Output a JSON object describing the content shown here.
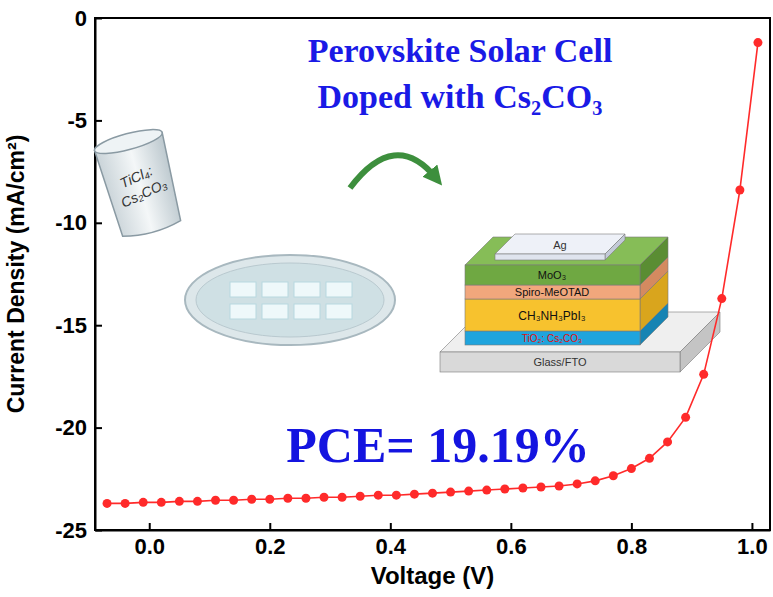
{
  "chart_data": {
    "type": "line",
    "x_label": "Voltage (V)",
    "y_label": "Current Density (mA/cm²)",
    "x": [
      -0.07,
      -0.04,
      -0.01,
      0.02,
      0.05,
      0.08,
      0.11,
      0.14,
      0.17,
      0.2,
      0.23,
      0.26,
      0.29,
      0.32,
      0.35,
      0.38,
      0.41,
      0.44,
      0.47,
      0.5,
      0.53,
      0.56,
      0.59,
      0.62,
      0.65,
      0.68,
      0.71,
      0.74,
      0.77,
      0.8,
      0.83,
      0.86,
      0.89,
      0.92,
      0.95,
      0.98,
      1.01
    ],
    "values": [
      -23.7,
      -23.7,
      -23.65,
      -23.65,
      -23.6,
      -23.6,
      -23.55,
      -23.55,
      -23.5,
      -23.5,
      -23.45,
      -23.45,
      -23.4,
      -23.4,
      -23.35,
      -23.3,
      -23.3,
      -23.25,
      -23.2,
      -23.15,
      -23.1,
      -23.05,
      -23.0,
      -22.95,
      -22.9,
      -22.85,
      -22.75,
      -22.6,
      -22.35,
      -22.0,
      -21.5,
      -20.7,
      -19.5,
      -17.4,
      -13.7,
      -8.4,
      -1.2
    ],
    "color": "#ff2a2a",
    "marker": "circle",
    "line_style": "solid",
    "xlim": [
      -0.09,
      1.03
    ],
    "ylim": [
      -25,
      0
    ],
    "xticks": [
      {
        "value": 0,
        "label": "0.0"
      },
      0.2,
      0.4,
      0.6,
      0.8,
      {
        "value": 1,
        "label": "1.0"
      }
    ],
    "yticks": [
      0,
      -5,
      -10,
      -15,
      -20,
      -25
    ],
    "grid": false,
    "annotations": [
      "Perovskite Solar Cell",
      "Doped with Cs₂CO₃",
      "PCE= 19.19%"
    ]
  },
  "inset": {
    "beaker_label": "TiCl₄: Cs₂CO₃",
    "layers": [
      "Ag",
      "MoO₃",
      "Spiro-MeOTAD",
      "CH₃NH₃PbI₃",
      "TiO₂: Cs₂CO₃",
      "Glass/FTO"
    ]
  }
}
